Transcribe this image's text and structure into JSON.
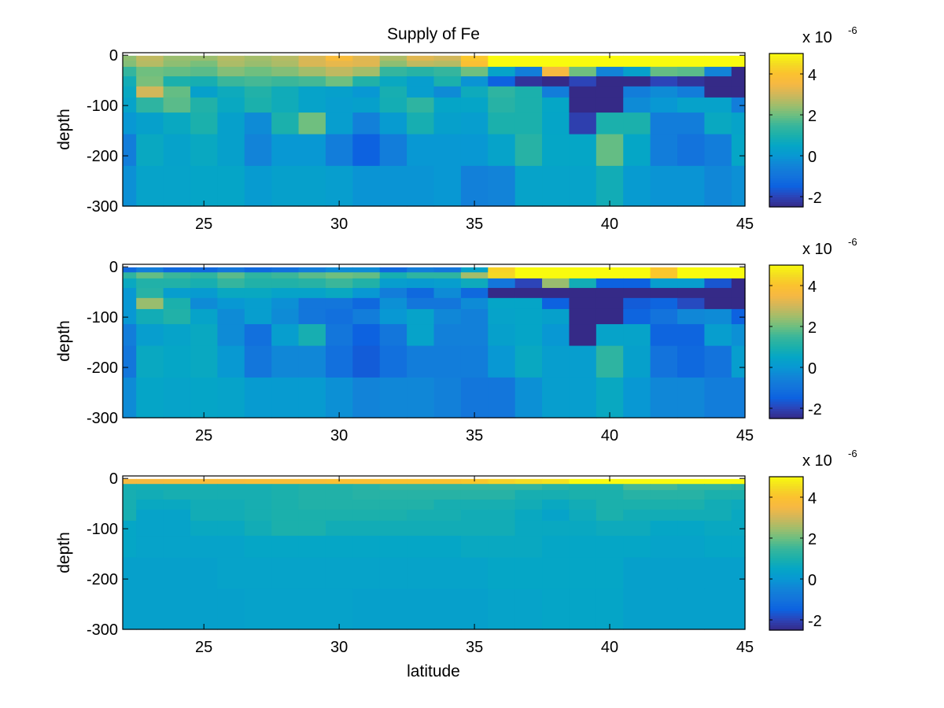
{
  "figure_title": "Supply of Fe",
  "colormap": [
    "#352a87",
    "#2c44b8",
    "#0d62e0",
    "#1373dc",
    "#1283d8",
    "#0898d3",
    "#05a6c6",
    "#1bb0ac",
    "#3ab69a",
    "#6fbf7f",
    "#a3bd6a",
    "#d1b75a",
    "#f6b843",
    "#fbc22f",
    "#f4dc22",
    "#f9fb0e"
  ],
  "chart_data": [
    {
      "type": "heatmap",
      "title": "Supply of Fe",
      "xlabel": "",
      "ylabel": "depth",
      "xlim": [
        22,
        45
      ],
      "ylim": [
        -300,
        5
      ],
      "xticks": [
        25,
        30,
        35,
        40,
        45
      ],
      "yticks": [
        0,
        -100,
        -200,
        -300
      ],
      "latitudes": [
        22,
        23,
        24,
        25,
        26,
        27,
        28,
        29,
        30,
        31,
        32,
        33,
        34,
        35,
        36,
        37,
        38,
        39,
        40,
        41,
        42,
        43,
        44,
        45
      ],
      "depth_edges": [
        -1,
        -11,
        -23,
        -42,
        -62,
        -84,
        -114,
        -157,
        -220,
        -300
      ],
      "clim": [
        -2.5,
        5
      ],
      "colorbar_ticks": [
        4,
        2,
        0,
        -2
      ],
      "colorbar_multiplier": {
        "base": "x 10",
        "exponent": "-6"
      },
      "values": [
        [
          2.3,
          2.8,
          2.4,
          2.4,
          2.7,
          2.5,
          2.7,
          3.1,
          3.7,
          3.2,
          2.6,
          3.2,
          3.0,
          4.1,
          5.5,
          5.5,
          5.5,
          5.5,
          5.5,
          5.5,
          5.5,
          5.5,
          5.5,
          5.5
        ],
        [
          2.2,
          2.7,
          2.3,
          2.1,
          2.6,
          2.4,
          2.6,
          3.1,
          3.3,
          3.2,
          2.3,
          2.8,
          2.7,
          3.9,
          5.5,
          5.5,
          5.5,
          5.5,
          5.5,
          5.5,
          5.5,
          5.5,
          5.5,
          5.5
        ],
        [
          1.4,
          2.0,
          1.9,
          1.8,
          2.2,
          2.0,
          2.2,
          2.5,
          2.8,
          2.5,
          1.4,
          1.2,
          1.4,
          2.0,
          0.4,
          -0.7,
          3.6,
          2.0,
          -0.5,
          0.3,
          1.9,
          1.8,
          -0.5,
          -2.5
        ],
        [
          0.8,
          2.1,
          1.0,
          0.9,
          1.5,
          1.6,
          1.5,
          1.6,
          2.0,
          1.1,
          0.6,
          0.2,
          1.0,
          -0.1,
          -1.5,
          -2.3,
          -2.5,
          -2.0,
          -2.5,
          -2.5,
          -2.0,
          -2.3,
          -2.5,
          -2.5
        ],
        [
          0.6,
          3.0,
          1.9,
          0.3,
          0.7,
          1.1,
          0.75,
          0.4,
          0.3,
          0.0,
          0.9,
          0.2,
          -0.3,
          0.7,
          1.3,
          1.0,
          -0.7,
          -2.5,
          -2.5,
          -0.7,
          -0.3,
          -0.7,
          -2.5,
          -2.5
        ],
        [
          0.4,
          1.3,
          1.8,
          1.1,
          0.6,
          1.0,
          0.75,
          0.4,
          0.2,
          0.3,
          0.85,
          1.3,
          0.45,
          0.45,
          1.2,
          1.0,
          0.5,
          -2.5,
          -2.5,
          -0.3,
          0.0,
          0.35,
          0.35,
          -0.7
        ],
        [
          0.0,
          0.3,
          0.6,
          1.0,
          0.3,
          -0.3,
          1.0,
          2.0,
          0.2,
          -0.6,
          0.1,
          0.9,
          0.3,
          0.2,
          1.0,
          1.0,
          0.45,
          -2.1,
          1.0,
          1.0,
          -0.7,
          -0.7,
          0.6,
          0.4
        ],
        [
          -0.7,
          0.6,
          0.35,
          0.6,
          0.3,
          -0.5,
          0.0,
          0.0,
          -0.7,
          -1.5,
          -0.7,
          0.0,
          0.0,
          0.0,
          0.4,
          1.2,
          0.5,
          0.5,
          1.9,
          0.5,
          -0.7,
          -1.0,
          -0.7,
          0.5
        ],
        [
          -0.2,
          0.4,
          0.4,
          0.45,
          0.45,
          0.1,
          0.3,
          0.3,
          0.2,
          -0.1,
          -0.1,
          -0.1,
          0.0,
          -0.6,
          -0.5,
          0.4,
          0.4,
          0.4,
          0.8,
          0.1,
          -0.1,
          -0.1,
          -0.4,
          -0.2
        ]
      ]
    },
    {
      "type": "heatmap",
      "title": "",
      "xlabel": "",
      "ylabel": "depth",
      "xlim": [
        22,
        45
      ],
      "ylim": [
        -300,
        5
      ],
      "xticks": [
        25,
        30,
        35,
        40,
        45
      ],
      "yticks": [
        0,
        -100,
        -200,
        -300
      ],
      "latitudes": [
        22,
        23,
        24,
        25,
        26,
        27,
        28,
        29,
        30,
        31,
        32,
        33,
        34,
        35,
        36,
        37,
        38,
        39,
        40,
        41,
        42,
        43,
        44,
        45
      ],
      "depth_edges": [
        -1,
        -11,
        -23,
        -42,
        -62,
        -84,
        -114,
        -157,
        -220,
        -300
      ],
      "clim": [
        -2.5,
        5
      ],
      "colorbar_ticks": [
        4,
        2,
        0,
        -2
      ],
      "colorbar_multiplier": {
        "base": "x 10",
        "exponent": "-6"
      },
      "values": [
        [
          -1.3,
          -0.7,
          -1.3,
          -1.3,
          -0.9,
          -1.3,
          -1.1,
          -0.7,
          -0.3,
          -0.3,
          -1.3,
          -0.7,
          -0.9,
          0.4,
          4.3,
          5.5,
          5.5,
          5.5,
          5.5,
          5.5,
          4.1,
          5.5,
          5.5,
          5.5
        ],
        [
          1.3,
          1.9,
          1.5,
          1.3,
          1.8,
          1.3,
          1.5,
          1.8,
          2.0,
          1.9,
          0.9,
          1.3,
          1.3,
          2.5,
          4.4,
          5.5,
          5.5,
          5.5,
          5.5,
          5.5,
          4.1,
          5.5,
          5.5,
          5.5
        ],
        [
          0.6,
          1.1,
          1.1,
          0.9,
          1.4,
          1.1,
          1.1,
          1.2,
          1.5,
          1.1,
          0.2,
          0.1,
          0.2,
          0.7,
          -0.9,
          -2.0,
          2.4,
          0.8,
          -1.5,
          -1.5,
          0.2,
          0.2,
          -1.7,
          -2.5
        ],
        [
          0.0,
          1.2,
          0.2,
          0.1,
          0.6,
          0.6,
          0.4,
          0.4,
          0.6,
          0.0,
          -0.7,
          -1.3,
          -0.3,
          -1.3,
          -2.5,
          -2.5,
          -2.5,
          -2.5,
          -2.5,
          -2.5,
          -2.5,
          -2.5,
          -2.5,
          -2.5
        ],
        [
          0.0,
          2.4,
          1.0,
          -0.3,
          0.0,
          0.2,
          -0.2,
          -0.9,
          -0.9,
          -1.3,
          -0.2,
          -0.9,
          -0.9,
          -0.3,
          0.45,
          0.45,
          -1.5,
          -2.5,
          -2.5,
          -1.6,
          -1.4,
          -1.9,
          -2.5,
          -2.5
        ],
        [
          0.0,
          0.8,
          1.1,
          0.4,
          -0.3,
          0.2,
          -0.3,
          -0.9,
          -1.1,
          -0.7,
          0.0,
          0.4,
          -0.4,
          -0.6,
          0.4,
          0.45,
          0.3,
          -2.5,
          -2.5,
          -1.4,
          -1.0,
          -0.4,
          -0.3,
          -1.5
        ],
        [
          -0.7,
          0.2,
          0.4,
          0.6,
          -0.3,
          -1.1,
          0.2,
          0.9,
          -0.9,
          -1.5,
          -0.9,
          0.4,
          -0.6,
          -0.6,
          0.3,
          0.45,
          0.0,
          -2.5,
          0.4,
          0.4,
          -1.4,
          -1.4,
          0.2,
          -0.2
        ],
        [
          -0.9,
          0.6,
          0.5,
          0.6,
          0.05,
          -0.9,
          -0.4,
          -0.4,
          -1.1,
          -1.6,
          -1.1,
          -0.7,
          -0.7,
          -0.7,
          0.0,
          0.6,
          0.2,
          0.2,
          1.3,
          0.3,
          -1.0,
          -1.3,
          -1.0,
          0.2
        ],
        [
          -0.3,
          0.45,
          0.4,
          0.45,
          0.4,
          0.1,
          0.1,
          0.1,
          -0.2,
          -0.5,
          -0.4,
          -0.4,
          -0.6,
          -0.9,
          -0.9,
          -0.2,
          0.2,
          0.2,
          0.6,
          0.0,
          -0.4,
          -0.4,
          -0.7,
          -0.7
        ]
      ]
    },
    {
      "type": "heatmap",
      "title": "",
      "xlabel": "latitude",
      "ylabel": "depth",
      "xlim": [
        22,
        45
      ],
      "ylim": [
        -300,
        5
      ],
      "xticks": [
        25,
        30,
        35,
        40,
        45
      ],
      "yticks": [
        0,
        -100,
        -200,
        -300
      ],
      "latitudes": [
        22,
        23,
        24,
        25,
        26,
        27,
        28,
        29,
        30,
        31,
        32,
        33,
        34,
        35,
        36,
        37,
        38,
        39,
        40,
        41,
        42,
        43,
        44,
        45
      ],
      "depth_edges": [
        -1,
        -11,
        -23,
        -42,
        -62,
        -84,
        -114,
        -157,
        -220,
        -300
      ],
      "clim": [
        -2.5,
        5
      ],
      "colorbar_ticks": [
        4,
        2,
        0,
        -2
      ],
      "colorbar_multiplier": {
        "base": "x 10",
        "exponent": "-6"
      },
      "values": [
        [
          3.6,
          3.6,
          3.7,
          3.7,
          3.7,
          3.8,
          3.8,
          3.8,
          3.9,
          3.9,
          4.0,
          4.0,
          4.0,
          4.1,
          4.3,
          4.5,
          4.6,
          5.0,
          5.0,
          5.0,
          5.0,
          5.0,
          5.0,
          5.0
        ],
        [
          0.9,
          0.9,
          0.9,
          0.9,
          0.9,
          0.9,
          1.0,
          1.1,
          1.1,
          1.2,
          1.4,
          1.4,
          1.4,
          1.4,
          1.4,
          1.4,
          1.2,
          1.1,
          1.1,
          1.6,
          1.6,
          1.4,
          1.4,
          1.3
        ],
        [
          0.9,
          0.8,
          0.9,
          0.9,
          0.9,
          0.9,
          1.0,
          1.1,
          1.1,
          1.2,
          1.2,
          1.2,
          1.2,
          1.2,
          1.2,
          0.9,
          0.9,
          1.0,
          1.0,
          1.2,
          1.2,
          1.2,
          1.0,
          1.0
        ],
        [
          0.9,
          0.6,
          0.6,
          0.8,
          0.8,
          0.9,
          1.0,
          1.1,
          1.1,
          1.1,
          1.1,
          1.1,
          0.9,
          0.9,
          0.9,
          0.8,
          0.6,
          0.8,
          1.0,
          1.0,
          1.0,
          1.0,
          0.8,
          0.7
        ],
        [
          0.9,
          0.4,
          0.4,
          0.8,
          0.8,
          0.9,
          1.0,
          1.0,
          1.0,
          1.0,
          1.0,
          0.9,
          0.9,
          0.8,
          0.8,
          0.6,
          0.4,
          0.7,
          1.0,
          0.8,
          0.8,
          0.8,
          0.8,
          0.6
        ],
        [
          0.5,
          0.4,
          0.4,
          0.6,
          0.6,
          0.8,
          1.0,
          1.0,
          0.8,
          0.8,
          0.8,
          0.8,
          0.8,
          0.8,
          0.8,
          0.6,
          0.6,
          0.6,
          0.7,
          0.7,
          0.5,
          0.5,
          0.6,
          0.6
        ],
        [
          0.5,
          0.4,
          0.4,
          0.4,
          0.4,
          0.5,
          0.5,
          0.5,
          0.5,
          0.5,
          0.5,
          0.5,
          0.5,
          0.6,
          0.6,
          0.6,
          0.5,
          0.5,
          0.5,
          0.5,
          0.4,
          0.4,
          0.5,
          0.5
        ],
        [
          0.3,
          0.3,
          0.3,
          0.3,
          0.4,
          0.4,
          0.4,
          0.4,
          0.4,
          0.4,
          0.4,
          0.4,
          0.4,
          0.4,
          0.5,
          0.5,
          0.5,
          0.5,
          0.5,
          0.3,
          0.3,
          0.3,
          0.3,
          0.3
        ],
        [
          0.3,
          0.3,
          0.3,
          0.3,
          0.3,
          0.35,
          0.35,
          0.35,
          0.35,
          0.3,
          0.3,
          0.3,
          0.3,
          0.3,
          0.4,
          0.4,
          0.45,
          0.45,
          0.45,
          0.3,
          0.3,
          0.3,
          0.3,
          0.3
        ]
      ]
    }
  ]
}
